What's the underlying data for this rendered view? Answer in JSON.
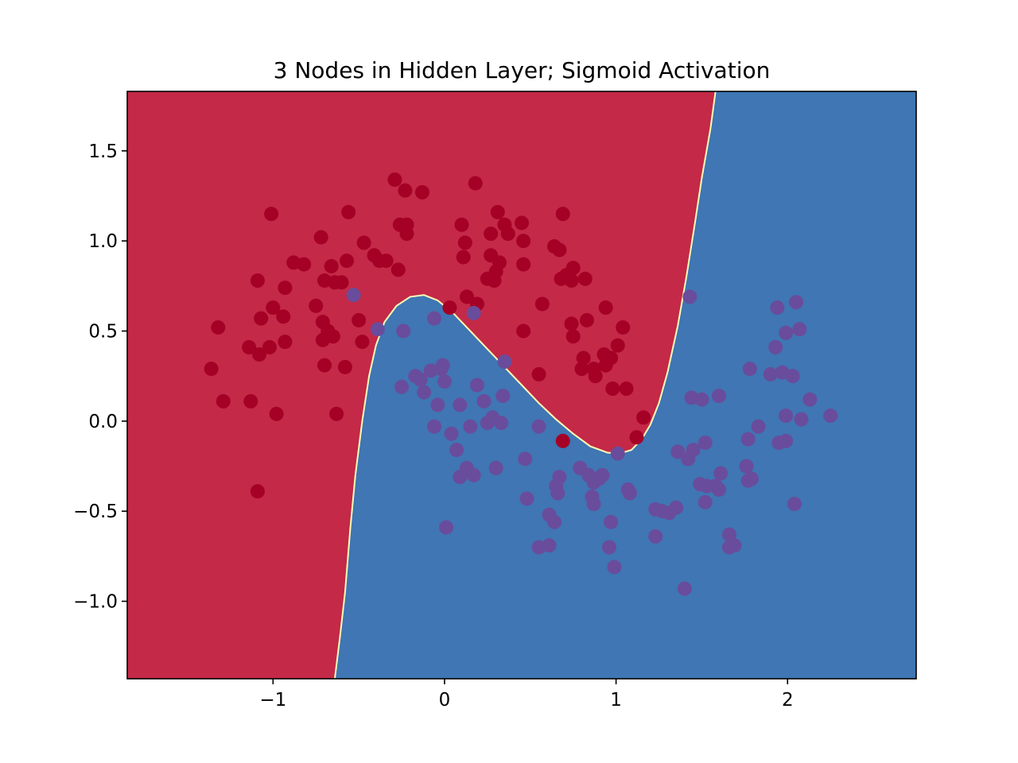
{
  "chart_data": {
    "type": "scatter",
    "title": "3 Nodes in Hidden Layer; Sigmoid Activation",
    "xlabel": "",
    "ylabel": "",
    "xlim": [
      -1.85,
      2.75
    ],
    "ylim": [
      -1.43,
      1.83
    ],
    "grid": false,
    "legend": "none",
    "x_ticks": [
      {
        "value": -1,
        "label": "−1"
      },
      {
        "value": 0,
        "label": "0"
      },
      {
        "value": 1,
        "label": "1"
      },
      {
        "value": 2,
        "label": "2"
      }
    ],
    "y_ticks": [
      {
        "value": -1.0,
        "label": "−1.0"
      },
      {
        "value": -0.5,
        "label": "−0.5"
      },
      {
        "value": 0.0,
        "label": "0.0"
      },
      {
        "value": 0.5,
        "label": "0.5"
      },
      {
        "value": 1.0,
        "label": "1.0"
      },
      {
        "value": 1.5,
        "label": "1.5"
      }
    ],
    "decision_regions": {
      "class_0_color": "#c42947",
      "class_1_color": "#3f76b3",
      "boundary_color": "#fdfdb5",
      "boundary": [
        [
          -0.64,
          -1.43
        ],
        [
          -0.61,
          -1.2
        ],
        [
          -0.58,
          -0.95
        ],
        [
          -0.55,
          -0.6
        ],
        [
          -0.52,
          -0.3
        ],
        [
          -0.48,
          0.0
        ],
        [
          -0.44,
          0.25
        ],
        [
          -0.4,
          0.42
        ],
        [
          -0.35,
          0.55
        ],
        [
          -0.28,
          0.64
        ],
        [
          -0.2,
          0.69
        ],
        [
          -0.12,
          0.7
        ],
        [
          -0.04,
          0.67
        ],
        [
          0.05,
          0.6
        ],
        [
          0.15,
          0.5
        ],
        [
          0.25,
          0.4
        ],
        [
          0.35,
          0.3
        ],
        [
          0.45,
          0.2
        ],
        [
          0.55,
          0.1
        ],
        [
          0.65,
          0.01
        ],
        [
          0.75,
          -0.07
        ],
        [
          0.85,
          -0.14
        ],
        [
          0.95,
          -0.175
        ],
        [
          1.02,
          -0.18
        ],
        [
          1.09,
          -0.16
        ],
        [
          1.15,
          -0.1
        ],
        [
          1.2,
          -0.02
        ],
        [
          1.25,
          0.1
        ],
        [
          1.3,
          0.27
        ],
        [
          1.36,
          0.53
        ],
        [
          1.41,
          0.8
        ],
        [
          1.46,
          1.1
        ],
        [
          1.5,
          1.35
        ],
        [
          1.55,
          1.62
        ],
        [
          1.58,
          1.83
        ]
      ]
    },
    "series": [
      {
        "color": "#a50026",
        "points": [
          [
            -1.36,
            0.29
          ],
          [
            -1.32,
            0.52
          ],
          [
            -1.29,
            0.11
          ],
          [
            -1.14,
            0.41
          ],
          [
            -1.13,
            0.11
          ],
          [
            -1.09,
            0.78
          ],
          [
            -1.08,
            0.37
          ],
          [
            -1.07,
            0.57
          ],
          [
            -1.09,
            -0.39
          ],
          [
            -1.02,
            0.41
          ],
          [
            -1.01,
            1.15
          ],
          [
            -1.0,
            0.63
          ],
          [
            -0.98,
            0.04
          ],
          [
            -0.94,
            0.58
          ],
          [
            -0.93,
            0.44
          ],
          [
            -0.93,
            0.74
          ],
          [
            -0.88,
            0.88
          ],
          [
            -0.82,
            0.87
          ],
          [
            -0.75,
            0.64
          ],
          [
            -0.72,
            1.02
          ],
          [
            -0.71,
            0.55
          ],
          [
            -0.71,
            0.45
          ],
          [
            -0.7,
            0.78
          ],
          [
            -0.7,
            0.31
          ],
          [
            -0.68,
            0.5
          ],
          [
            -0.66,
            0.86
          ],
          [
            -0.65,
            0.47
          ],
          [
            -0.64,
            0.77
          ],
          [
            -0.63,
            0.04
          ],
          [
            -0.6,
            0.77
          ],
          [
            -0.58,
            0.3
          ],
          [
            -0.57,
            0.89
          ],
          [
            -0.56,
            1.16
          ],
          [
            -0.5,
            0.56
          ],
          [
            -0.48,
            0.44
          ],
          [
            -0.47,
            0.99
          ],
          [
            -0.41,
            0.92
          ],
          [
            -0.38,
            0.89
          ],
          [
            -0.34,
            0.89
          ],
          [
            -0.29,
            1.34
          ],
          [
            -0.27,
            0.84
          ],
          [
            -0.26,
            1.09
          ],
          [
            -0.23,
            1.28
          ],
          [
            -0.22,
            1.09
          ],
          [
            -0.22,
            1.04
          ],
          [
            -0.13,
            1.27
          ],
          [
            0.03,
            0.63
          ],
          [
            0.1,
            1.09
          ],
          [
            0.11,
            0.91
          ],
          [
            0.12,
            0.99
          ],
          [
            0.13,
            0.69
          ],
          [
            0.19,
            0.65
          ],
          [
            0.18,
            1.32
          ],
          [
            0.25,
            0.79
          ],
          [
            0.27,
            0.92
          ],
          [
            0.27,
            1.04
          ],
          [
            0.29,
            0.78
          ],
          [
            0.3,
            0.83
          ],
          [
            0.31,
            1.16
          ],
          [
            0.32,
            0.88
          ],
          [
            0.35,
            1.09
          ],
          [
            0.37,
            1.04
          ],
          [
            0.45,
            1.1
          ],
          [
            0.46,
            1.0
          ],
          [
            0.46,
            0.87
          ],
          [
            0.46,
            0.5
          ],
          [
            0.55,
            0.26
          ],
          [
            0.57,
            0.65
          ],
          [
            0.64,
            0.97
          ],
          [
            0.67,
            0.95
          ],
          [
            0.68,
            0.79
          ],
          [
            0.69,
            1.15
          ],
          [
            0.71,
            0.81
          ],
          [
            0.74,
            0.78
          ],
          [
            0.74,
            0.54
          ],
          [
            0.75,
            0.47
          ],
          [
            0.75,
            0.85
          ],
          [
            0.8,
            0.29
          ],
          [
            0.81,
            0.35
          ],
          [
            0.82,
            0.79
          ],
          [
            0.83,
            0.56
          ],
          [
            0.87,
            0.29
          ],
          [
            0.88,
            0.25
          ],
          [
            0.93,
            0.37
          ],
          [
            0.94,
            0.31
          ],
          [
            0.94,
            0.63
          ],
          [
            0.97,
            0.35
          ],
          [
            0.98,
            0.18
          ],
          [
            1.01,
            0.42
          ],
          [
            1.04,
            0.52
          ],
          [
            1.06,
            0.18
          ],
          [
            1.12,
            -0.09
          ],
          [
            1.16,
            0.02
          ],
          [
            0.69,
            -0.11
          ]
        ]
      },
      {
        "color": "#6a4c9c",
        "points": [
          [
            -0.53,
            0.7
          ],
          [
            -0.39,
            0.51
          ],
          [
            -0.24,
            0.5
          ],
          [
            -0.25,
            0.19
          ],
          [
            -0.17,
            0.25
          ],
          [
            -0.14,
            0.23
          ],
          [
            -0.12,
            0.16
          ],
          [
            -0.08,
            0.28
          ],
          [
            -0.06,
            0.57
          ],
          [
            -0.06,
            -0.03
          ],
          [
            -0.04,
            0.09
          ],
          [
            -0.02,
            0.29
          ],
          [
            -0.01,
            0.31
          ],
          [
            0.0,
            0.22
          ],
          [
            0.01,
            -0.59
          ],
          [
            0.04,
            -0.07
          ],
          [
            0.07,
            -0.16
          ],
          [
            0.09,
            0.09
          ],
          [
            0.09,
            -0.31
          ],
          [
            0.13,
            -0.26
          ],
          [
            0.15,
            -0.03
          ],
          [
            0.17,
            -0.3
          ],
          [
            0.17,
            0.6
          ],
          [
            0.19,
            0.2
          ],
          [
            0.23,
            0.11
          ],
          [
            0.25,
            -0.01
          ],
          [
            0.28,
            0.02
          ],
          [
            0.3,
            -0.26
          ],
          [
            0.33,
            -0.01
          ],
          [
            0.34,
            0.14
          ],
          [
            0.35,
            0.33
          ],
          [
            0.47,
            -0.21
          ],
          [
            0.48,
            -0.43
          ],
          [
            0.55,
            -0.7
          ],
          [
            0.55,
            -0.03
          ],
          [
            0.61,
            -0.69
          ],
          [
            0.61,
            -0.52
          ],
          [
            0.64,
            -0.56
          ],
          [
            0.65,
            -0.36
          ],
          [
            0.66,
            -0.4
          ],
          [
            0.67,
            -0.31
          ],
          [
            0.79,
            -0.26
          ],
          [
            0.84,
            -0.3
          ],
          [
            0.86,
            -0.42
          ],
          [
            0.87,
            -0.34
          ],
          [
            0.87,
            -0.46
          ],
          [
            0.9,
            -0.32
          ],
          [
            0.92,
            -0.3
          ],
          [
            0.97,
            -0.56
          ],
          [
            0.96,
            -0.7
          ],
          [
            0.99,
            -0.81
          ],
          [
            1.01,
            -0.18
          ],
          [
            1.07,
            -0.38
          ],
          [
            1.08,
            -0.4
          ],
          [
            1.23,
            -0.49
          ],
          [
            1.23,
            -0.64
          ],
          [
            1.27,
            -0.5
          ],
          [
            1.31,
            -0.51
          ],
          [
            1.35,
            -0.48
          ],
          [
            1.36,
            -0.17
          ],
          [
            1.4,
            -0.93
          ],
          [
            1.42,
            -0.21
          ],
          [
            1.43,
            0.69
          ],
          [
            1.44,
            0.13
          ],
          [
            1.45,
            -0.16
          ],
          [
            1.49,
            -0.35
          ],
          [
            1.5,
            0.12
          ],
          [
            1.52,
            -0.45
          ],
          [
            1.52,
            -0.12
          ],
          [
            1.53,
            -0.36
          ],
          [
            1.58,
            -0.36
          ],
          [
            1.6,
            0.14
          ],
          [
            1.6,
            -0.38
          ],
          [
            1.61,
            -0.29
          ],
          [
            1.66,
            -0.7
          ],
          [
            1.66,
            -0.63
          ],
          [
            1.69,
            -0.69
          ],
          [
            1.76,
            -0.25
          ],
          [
            1.77,
            -0.33
          ],
          [
            1.77,
            -0.1
          ],
          [
            1.79,
            -0.32
          ],
          [
            1.78,
            0.29
          ],
          [
            1.83,
            -0.03
          ],
          [
            1.9,
            0.26
          ],
          [
            1.93,
            0.41
          ],
          [
            1.94,
            0.63
          ],
          [
            1.95,
            -0.12
          ],
          [
            1.97,
            0.27
          ],
          [
            1.99,
            0.03
          ],
          [
            1.99,
            -0.11
          ],
          [
            1.99,
            0.49
          ],
          [
            2.03,
            0.25
          ],
          [
            2.04,
            -0.46
          ],
          [
            2.05,
            0.66
          ],
          [
            2.07,
            0.51
          ],
          [
            2.08,
            0.01
          ],
          [
            2.13,
            0.12
          ],
          [
            2.25,
            0.03
          ]
        ]
      }
    ]
  }
}
